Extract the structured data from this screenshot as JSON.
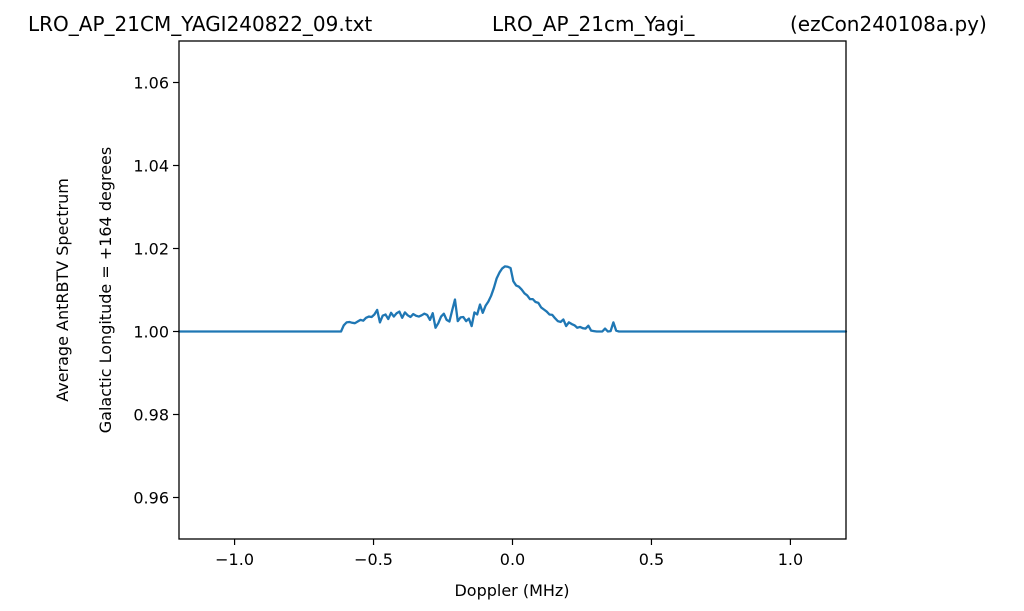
{
  "header": {
    "left_title": "LRO_AP_21CM_YAGI240822_09.txt",
    "center_title": "LRO_AP_21cm_Yagi_",
    "right_title": "(ezCon240108a.py)"
  },
  "chart_data": {
    "type": "line",
    "xlabel": "Doppler (MHz)",
    "ylabel_line1": "Average AntRBTV Spectrum",
    "ylabel_line2": "Galactic Longitude = +164 degrees",
    "xlim": [
      -1.2,
      1.2
    ],
    "ylim": [
      0.95,
      1.07
    ],
    "x_ticks": [
      -1.0,
      -0.5,
      0.0,
      0.5,
      1.0
    ],
    "x_tick_labels": [
      "−1.0",
      "−0.5",
      "0.0",
      "0.5",
      "1.0"
    ],
    "y_ticks": [
      0.96,
      0.98,
      1.0,
      1.02,
      1.04,
      1.06
    ],
    "y_tick_labels": [
      "0.96",
      "0.98",
      "1.00",
      "1.02",
      "1.04",
      "1.06"
    ],
    "grid": false,
    "colors": {
      "series": "#1f77b4"
    },
    "series": [
      {
        "x": [
          -1.2,
          -0.617,
          -0.607,
          -0.597,
          -0.587,
          -0.577,
          -0.567,
          -0.557,
          -0.547,
          -0.537,
          -0.527,
          -0.517,
          -0.507,
          -0.497,
          -0.487,
          -0.477,
          -0.467,
          -0.457,
          -0.447,
          -0.437,
          -0.427,
          -0.417,
          -0.407,
          -0.397,
          -0.387,
          -0.377,
          -0.367,
          -0.357,
          -0.347,
          -0.337,
          -0.327,
          -0.317,
          -0.307,
          -0.297,
          -0.287,
          -0.277,
          -0.267,
          -0.257,
          -0.247,
          -0.237,
          -0.227,
          -0.217,
          -0.207,
          -0.197,
          -0.187,
          -0.177,
          -0.167,
          -0.157,
          -0.147,
          -0.137,
          -0.127,
          -0.117,
          -0.107,
          -0.097,
          -0.087,
          -0.077,
          -0.067,
          -0.057,
          -0.047,
          -0.037,
          -0.027,
          -0.017,
          -0.007,
          0.003,
          0.013,
          0.023,
          0.033,
          0.043,
          0.053,
          0.063,
          0.073,
          0.083,
          0.093,
          0.103,
          0.113,
          0.123,
          0.133,
          0.143,
          0.153,
          0.163,
          0.173,
          0.183,
          0.193,
          0.203,
          0.213,
          0.223,
          0.233,
          0.243,
          0.253,
          0.263,
          0.273,
          0.283,
          0.293,
          0.303,
          0.313,
          0.323,
          0.333,
          0.343,
          0.353,
          0.363,
          0.373,
          0.383,
          0.393,
          1.2
        ],
        "y": [
          1.0,
          1.0,
          1.0015,
          1.0022,
          1.0023,
          1.0021,
          1.002,
          1.0024,
          1.0028,
          1.0026,
          1.0033,
          1.0036,
          1.0035,
          1.0041,
          1.0052,
          1.0022,
          1.0038,
          1.0041,
          1.003,
          1.0045,
          1.0036,
          1.0044,
          1.0048,
          1.0033,
          1.0046,
          1.0039,
          1.0035,
          1.0042,
          1.0038,
          1.0036,
          1.0039,
          1.0043,
          1.004,
          1.0028,
          1.0044,
          1.0009,
          1.002,
          1.0036,
          1.0043,
          1.0028,
          1.0024,
          1.0051,
          1.0077,
          1.0025,
          1.0034,
          1.0035,
          1.0025,
          1.0031,
          1.0013,
          1.0046,
          1.0041,
          1.0065,
          1.0045,
          1.0062,
          1.0072,
          1.0086,
          1.0105,
          1.0128,
          1.0142,
          1.0152,
          1.0157,
          1.0156,
          1.0153,
          1.0121,
          1.0111,
          1.0108,
          1.0101,
          1.0092,
          1.0087,
          1.0078,
          1.0078,
          1.0071,
          1.0069,
          1.0058,
          1.0053,
          1.0048,
          1.0041,
          1.004,
          1.0032,
          1.0025,
          1.0023,
          1.0029,
          1.0013,
          1.0022,
          1.0018,
          1.0015,
          1.0009,
          1.0011,
          1.0008,
          1.0007,
          1.0014,
          1.0002,
          1.0001,
          1.0,
          1.0,
          1.0,
          1.0007,
          1.0,
          1.0001,
          1.0022,
          1.0002,
          1.0,
          1.0,
          1.0
        ]
      }
    ]
  }
}
